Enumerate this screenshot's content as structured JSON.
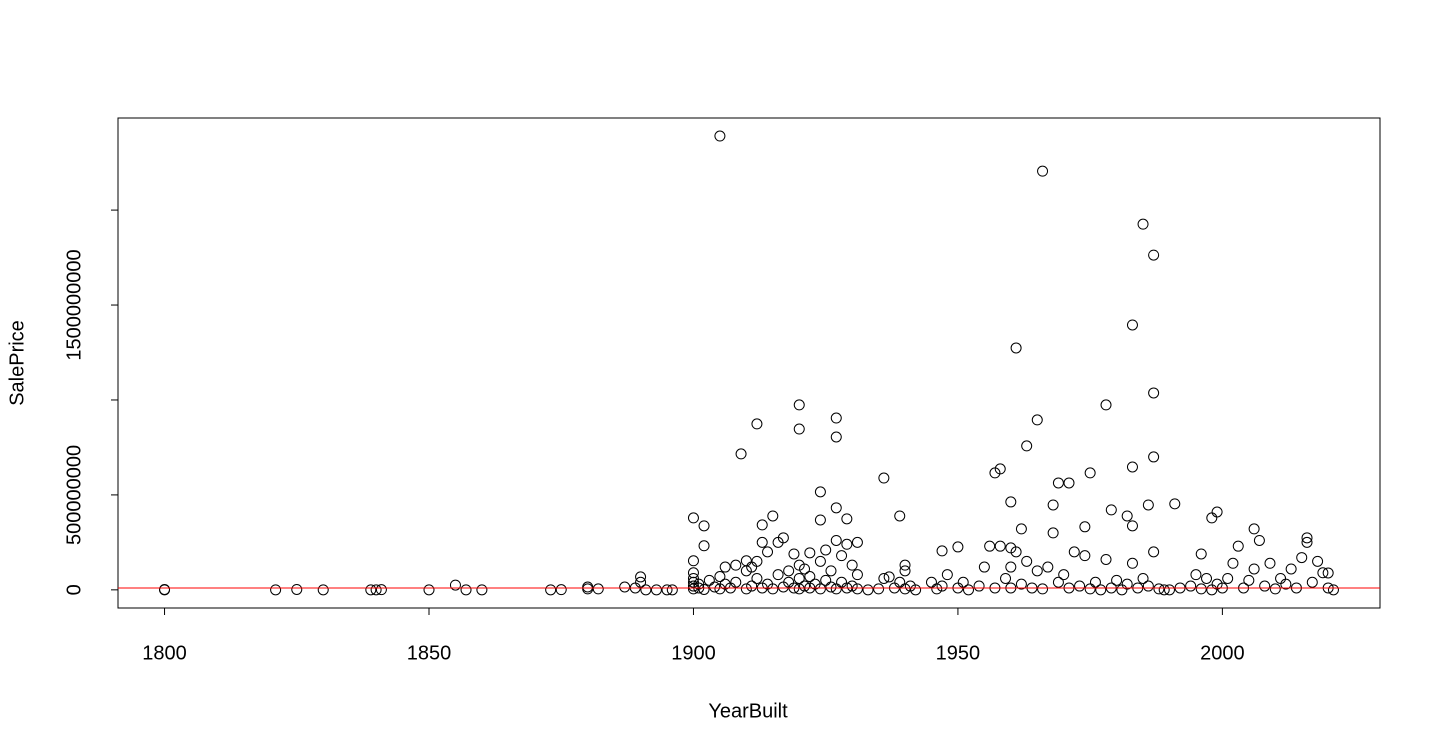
{
  "chart_data": {
    "type": "scatter",
    "x_label": "YearBuilt",
    "y_label": "SalePrice",
    "xlim": [
      1791.2,
      2029.8
    ],
    "ylim": [
      -95600000,
      2485000000
    ],
    "xticks": [
      1800,
      1850,
      1900,
      1950,
      2000
    ],
    "yticks": [
      0,
      500000000,
      1500000000
    ],
    "yticks_minor": [
      1000000000,
      2000000000
    ],
    "grid": false,
    "color": "#000000",
    "reference_line": {
      "y": 10000000,
      "color": "#ff0000"
    },
    "x": [
      1905,
      1966,
      1985,
      1987,
      1983,
      1961,
      1987,
      1920,
      1978,
      1927,
      1965,
      1912,
      1920,
      1927,
      1963,
      1909,
      1987,
      1983,
      1958,
      1957,
      1975,
      1936,
      1969,
      1971,
      1924,
      1960,
      1991,
      1968,
      1986,
      1927,
      1979,
      1999,
      1982,
      1939,
      1915,
      1900,
      1998,
      1924,
      1929,
      1974,
      1902,
      2006,
      1913,
      1962,
      1983,
      2016,
      1917,
      1902,
      1950,
      1960,
      1947,
      1996,
      1919,
      1922,
      1910,
      1900,
      1890,
      1937,
      2020,
      1800,
      1800,
      1821,
      1825,
      1830,
      1839,
      1840,
      1841,
      1850,
      1855,
      1857,
      1860,
      1873,
      1875,
      1880,
      1880,
      1882,
      1887,
      1889,
      1890,
      1891,
      1893,
      1895,
      1896,
      1900,
      1900,
      1900,
      1900,
      1900,
      1901,
      1901,
      1902,
      1903,
      1904,
      1905,
      1905,
      1906,
      1906,
      1907,
      1908,
      1908,
      1910,
      1910,
      1911,
      1911,
      1912,
      1912,
      1913,
      1913,
      1914,
      1914,
      1915,
      1916,
      1916,
      1917,
      1918,
      1918,
      1919,
      1920,
      1920,
      1920,
      1921,
      1921,
      1922,
      1922,
      1923,
      1924,
      1924,
      1925,
      1925,
      1926,
      1926,
      1927,
      1927,
      1928,
      1928,
      1929,
      1929,
      1930,
      1930,
      1931,
      1931,
      1931,
      1933,
      1935,
      1936,
      1938,
      1939,
      1940,
      1940,
      1940,
      1941,
      1942,
      1945,
      1946,
      1947,
      1948,
      1950,
      1951,
      1952,
      1954,
      1955,
      1956,
      1957,
      1958,
      1959,
      1960,
      1960,
      1961,
      1962,
      1963,
      1964,
      1965,
      1966,
      1967,
      1968,
      1969,
      1970,
      1971,
      1972,
      1973,
      1974,
      1975,
      1976,
      1977,
      1978,
      1979,
      1980,
      1981,
      1982,
      1983,
      1984,
      1985,
      1986,
      1987,
      1988,
      1989,
      1990,
      1992,
      1994,
      1995,
      1996,
      1997,
      1998,
      1999,
      2000,
      2001,
      2002,
      2003,
      2004,
      2005,
      2006,
      2007,
      2008,
      2009,
      2010,
      2011,
      2012,
      2013,
      2014,
      2015,
      2016,
      2017,
      2018,
      2019,
      2020,
      2021
    ],
    "y": [
      2390000000,
      2205000000,
      1926000000,
      1763000000,
      1395000000,
      1274000000,
      1037000000,
      974000000,
      974000000,
      905000000,
      895000000,
      874000000,
      847000000,
      805000000,
      758000000,
      716000000,
      700000000,
      647000000,
      637000000,
      616000000,
      616000000,
      589000000,
      563000000,
      563000000,
      516000000,
      463000000,
      453000000,
      447000000,
      447000000,
      432000000,
      421000000,
      410000000,
      389000000,
      389000000,
      389000000,
      379000000,
      379000000,
      368000000,
      374000000,
      332000000,
      337000000,
      321000000,
      342000000,
      321000000,
      337000000,
      274000000,
      274000000,
      232000000,
      226000000,
      221000000,
      205000000,
      189000000,
      189000000,
      195000000,
      153000000,
      153000000,
      68000000,
      68000000,
      89000000,
      0,
      2000000,
      0,
      2000000,
      0,
      0,
      0,
      1000000,
      0,
      25000000,
      0,
      0,
      0,
      1000000,
      5000000,
      15000000,
      5000000,
      15000000,
      10000000,
      40000000,
      0,
      0,
      0,
      0,
      5000000,
      20000000,
      40000000,
      60000000,
      90000000,
      10000000,
      30000000,
      2000000,
      50000000,
      15000000,
      5000000,
      70000000,
      30000000,
      120000000,
      10000000,
      40000000,
      130000000,
      5000000,
      100000000,
      20000000,
      120000000,
      60000000,
      150000000,
      10000000,
      250000000,
      30000000,
      200000000,
      5000000,
      80000000,
      250000000,
      15000000,
      40000000,
      100000000,
      10000000,
      5000000,
      60000000,
      130000000,
      20000000,
      110000000,
      10000000,
      70000000,
      30000000,
      5000000,
      150000000,
      50000000,
      210000000,
      15000000,
      100000000,
      5000000,
      260000000,
      40000000,
      180000000,
      10000000,
      240000000,
      20000000,
      130000000,
      5000000,
      250000000,
      80000000,
      0,
      5000000,
      60000000,
      10000000,
      40000000,
      5000000,
      100000000,
      130000000,
      20000000,
      0,
      40000000,
      5000000,
      20000000,
      80000000,
      10000000,
      40000000,
      0,
      20000000,
      120000000,
      230000000,
      10000000,
      230000000,
      60000000,
      10000000,
      120000000,
      200000000,
      30000000,
      150000000,
      10000000,
      100000000,
      5000000,
      120000000,
      300000000,
      40000000,
      80000000,
      10000000,
      200000000,
      20000000,
      180000000,
      5000000,
      40000000,
      0,
      160000000,
      10000000,
      50000000,
      0,
      30000000,
      140000000,
      10000000,
      60000000,
      20000000,
      200000000,
      5000000,
      0,
      0,
      10000000,
      20000000,
      80000000,
      5000000,
      60000000,
      0,
      30000000,
      10000000,
      60000000,
      140000000,
      230000000,
      10000000,
      50000000,
      110000000,
      260000000,
      20000000,
      140000000,
      5000000,
      60000000,
      30000000,
      110000000,
      10000000,
      170000000,
      250000000,
      40000000,
      150000000,
      90000000,
      10000000,
      0
    ]
  }
}
